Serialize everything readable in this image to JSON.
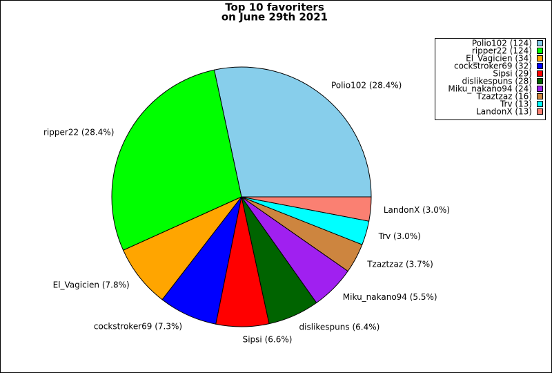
{
  "chart_data": {
    "type": "pie",
    "title": [
      "Top 10 favoriters",
      "on June 29th 2021"
    ],
    "categories": [
      "Polio102",
      "ripper22",
      "El_Vagicien",
      "cockstroker69",
      "Sipsi",
      "dislikespuns",
      "Miku_nakano94",
      "Tzaztzaz",
      "Trv",
      "LandonX"
    ],
    "values": [
      28.4,
      28.4,
      7.8,
      7.3,
      6.6,
      6.4,
      5.5,
      3.7,
      3.0,
      3.0
    ],
    "value_labels": [
      "Polio102 (28.4%)",
      "ripper22 (28.4%)",
      "El_Vagicien (7.8%)",
      "cockstroker69 (7.3%)",
      "Sipsi (6.6%)",
      "dislikespuns (6.4%)",
      "Miku_nakano94 (5.5%)",
      "Tzaztzaz (3.7%)",
      "Trv (3.0%)",
      "LandonX (3.0%)"
    ],
    "legend_labels": [
      "Polio102 (124)",
      "ripper22 (124)",
      "El_Vagicien (34)",
      "cockstroker69 (32)",
      "Sipsi (29)",
      "dislikespuns (28)",
      "Miku_nakano94 (24)",
      "Tzaztzaz (16)",
      "Trv (13)",
      "LandonX (13)"
    ],
    "colors": [
      "#87ceeb",
      "#00ff00",
      "#ffa500",
      "#0000ff",
      "#ff0000",
      "#006400",
      "#a020f0",
      "#cd853f",
      "#00ffff",
      "#fa8072"
    ],
    "legend": "upper right"
  }
}
